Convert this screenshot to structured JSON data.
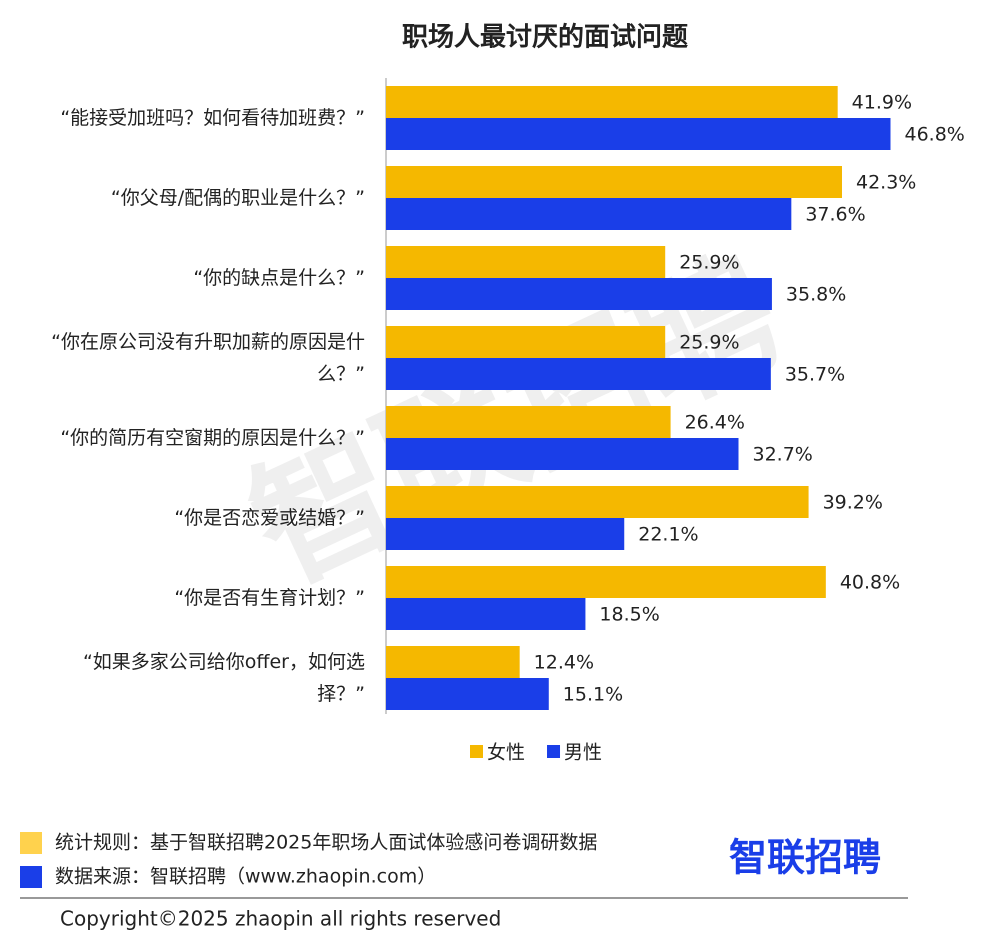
{
  "chart_data": {
    "type": "bar",
    "orientation": "horizontal",
    "title": "职场人最讨厌的面试问题",
    "categories": [
      "“能接受加班吗？如何看待加班费？”",
      "“你父母/配偶的职业是什么？”",
      "“你的缺点是什么？”",
      "“你在原公司没有升职加薪的原因是什么？”",
      "“你的简历有空窗期的原因是什么？”",
      "“你是否恋爱或结婚？”",
      "“你是否有生育计划？”",
      "“如果多家公司给你offer，如何选择？”"
    ],
    "series": [
      {
        "name": "女性",
        "color": "#f5b800",
        "values": [
          41.9,
          42.3,
          25.9,
          25.9,
          26.4,
          39.2,
          40.8,
          12.4
        ],
        "value_labels": [
          "41.9%",
          "42.3%",
          "25.9%",
          "25.9%",
          "26.4%",
          "39.2%",
          "40.8%",
          "12.4%"
        ]
      },
      {
        "name": "男性",
        "color": "#1a3ee8",
        "values": [
          46.8,
          37.6,
          35.8,
          35.7,
          32.7,
          22.1,
          18.5,
          15.1
        ],
        "value_labels": [
          "46.8%",
          "37.6%",
          "35.8%",
          "35.7%",
          "32.7%",
          "22.1%",
          "18.5%",
          "15.1%"
        ]
      }
    ],
    "xlim": [
      0,
      50
    ],
    "legend": "bottom",
    "watermark": "智联招聘",
    "notes": [
      {
        "text": "统计规则：基于智联招聘2025年职场人面试体验感问卷调研数据",
        "color": "#ffd24d"
      },
      {
        "text": "数据来源：智联招聘（www.zhaopin.com）",
        "color": "#1a3ee8"
      }
    ],
    "logo": "智联招聘",
    "copyright": "Copyright©2025 zhaopin all rights reserved"
  }
}
